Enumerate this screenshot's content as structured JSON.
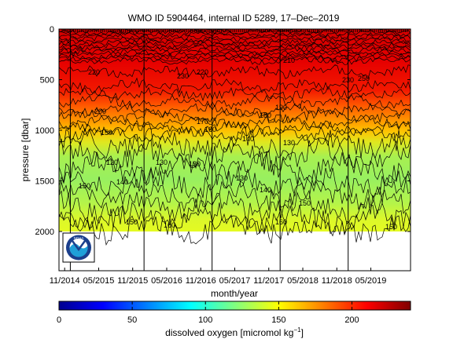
{
  "chart_data": [
    {
      "type": "heatmap",
      "subtype": "filled-contour section (pressure vs time)",
      "title": "WMO ID 5904464, internal ID 5289, 17–Dec–2019",
      "xlabel": "month/year",
      "ylabel": "pressure [dbar]",
      "x_ticks": [
        "11/2014",
        "05/2015",
        "11/2015",
        "05/2016",
        "11/2016",
        "05/2017",
        "11/2017",
        "05/2018",
        "11/2018",
        "05/2019"
      ],
      "y_ticks": [
        "0",
        "500",
        "1000",
        "1500",
        "2000"
      ],
      "y_tick_values": [
        0,
        500,
        1000,
        1500,
        2000
      ],
      "ylim": [
        2000,
        0
      ],
      "y_inverted": true,
      "x_range": [
        "2014-10",
        "2019-12"
      ],
      "variable": "dissolved oxygen",
      "units": "micromol kg-1",
      "color_range": [
        0,
        240
      ],
      "colormap": "jet",
      "contour_labels": [
        "220",
        "230",
        "210",
        "220",
        "230",
        "250",
        "200",
        "190",
        "180",
        "170",
        "160",
        "150",
        "140",
        "130",
        "120",
        "130",
        "130",
        "130",
        "140",
        "140",
        "150",
        "150",
        "150",
        "160",
        "160",
        "150"
      ],
      "profile_year_lines": [
        "2014-12",
        "2016-01",
        "2017-01",
        "2018-01",
        "2019-01"
      ],
      "estimated_profile_mean": {
        "pressure": [
          0,
          100,
          300,
          500,
          700,
          900,
          1000,
          1200,
          1400,
          1600,
          1800,
          2000
        ],
        "oxygen": [
          228,
          232,
          236,
          236,
          222,
          202,
          185,
          155,
          128,
          132,
          150,
          162
        ]
      }
    },
    {
      "type": "colorbar",
      "xlabel": "dissolved oxygen [micromol kg",
      "xlabel_sup": "−1",
      "xlabel_tail": "]",
      "ticks": [
        "0",
        "50",
        "100",
        "150",
        "200"
      ],
      "tick_values": [
        0,
        50,
        100,
        150,
        200
      ],
      "range": [
        0,
        240
      ]
    }
  ],
  "logo": {
    "text": "NOAA",
    "ring_color": "#1b3f8c",
    "wave_color": "#1fa0d8"
  }
}
